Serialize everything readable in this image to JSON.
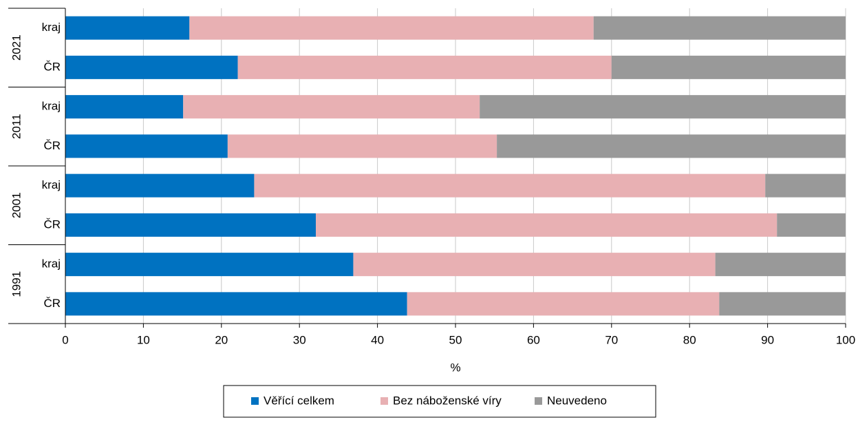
{
  "chart_data": {
    "type": "stacked-barh",
    "groups": [
      "2021",
      "2011",
      "2001",
      "1991"
    ],
    "categories": [
      "kraj",
      "ČR",
      "kraj",
      "ČR",
      "kraj",
      "ČR",
      "kraj",
      "ČR"
    ],
    "series": [
      {
        "name": "Věřící celkem",
        "color": "#0072c1",
        "values": [
          15.9,
          22.1,
          15.1,
          20.8,
          24.2,
          32.1,
          36.9,
          43.8
        ]
      },
      {
        "name": "Bez náboženské víry",
        "color": "#e8b0b3",
        "values": [
          51.8,
          47.9,
          38.0,
          34.5,
          65.5,
          59.1,
          46.4,
          40.0
        ]
      },
      {
        "name": "Neuvedeno",
        "color": "#999999",
        "values": [
          32.3,
          30.0,
          46.9,
          44.7,
          10.3,
          8.8,
          16.7,
          16.2
        ]
      }
    ],
    "xlabel": "%",
    "xlim": [
      0,
      100
    ],
    "xticks": [
      0,
      10,
      20,
      30,
      40,
      50,
      60,
      70,
      80,
      90,
      100
    ],
    "grid": true,
    "legend": "bottom"
  }
}
